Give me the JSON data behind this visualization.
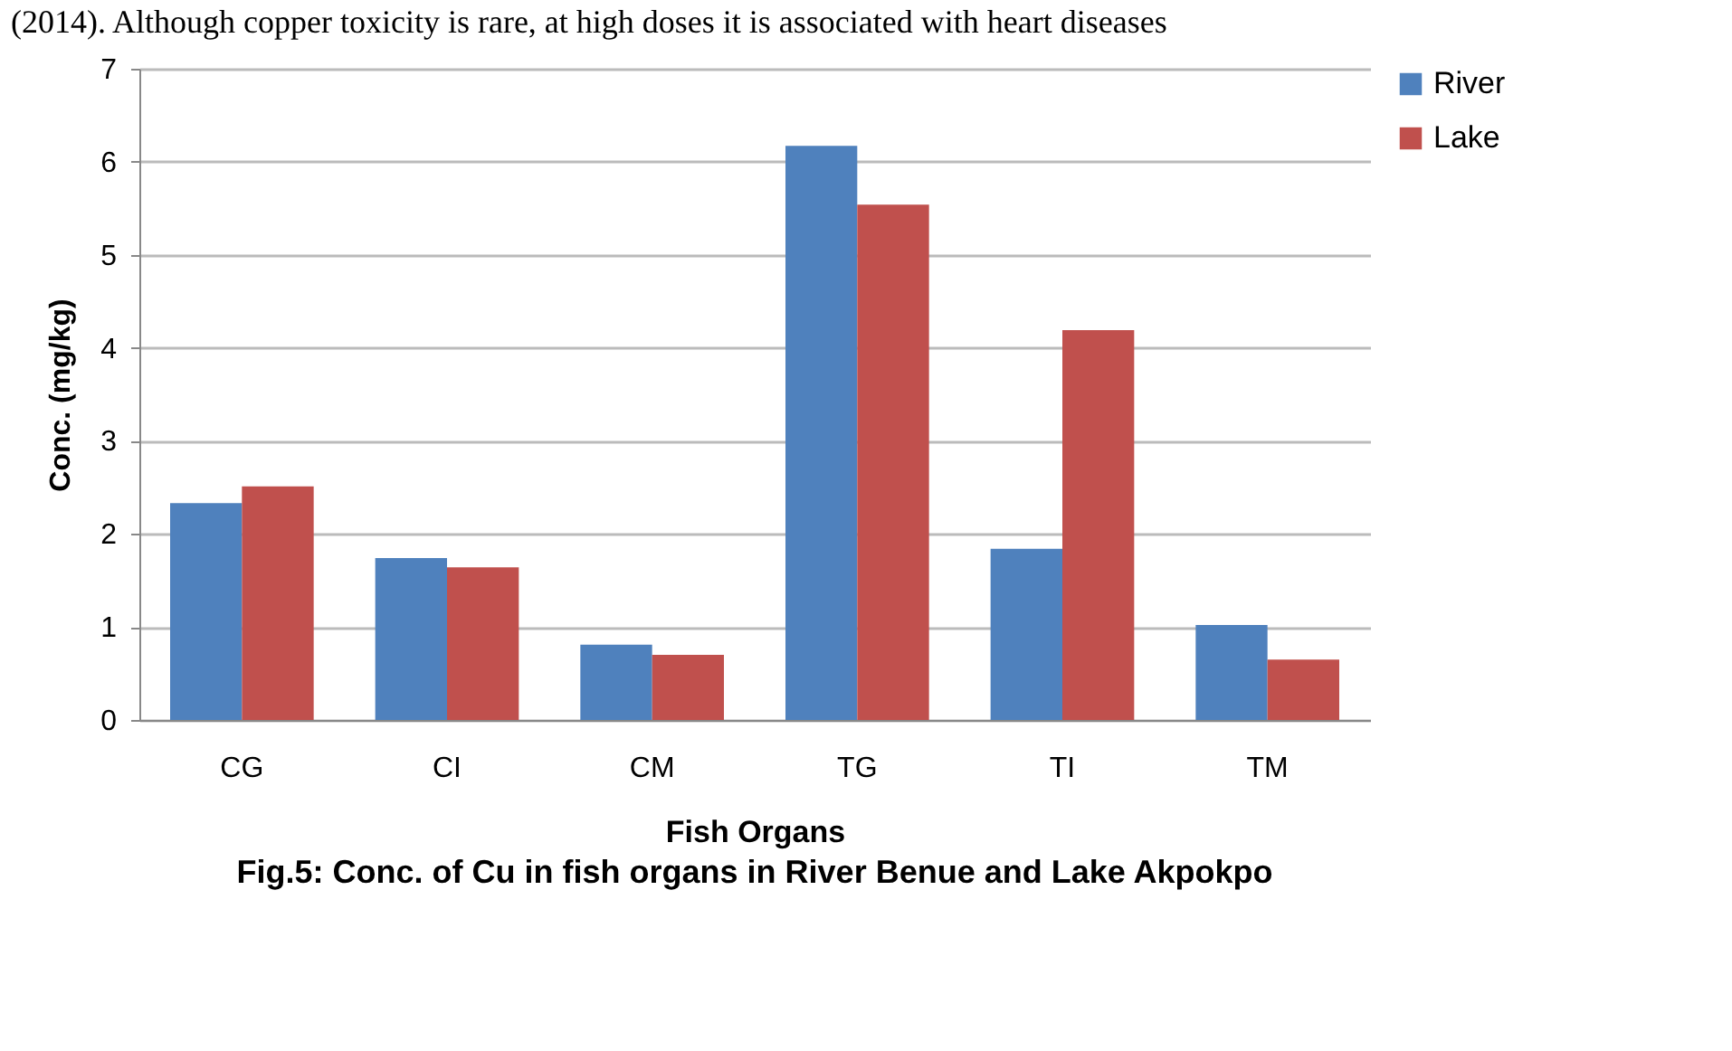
{
  "chart_data": {
    "type": "bar",
    "title": "Fig.5: Conc. of Cu in fish organs in River Benue and Lake Akpokpo",
    "xlabel": "Fish Organs",
    "ylabel": "Conc. (mg/kg)",
    "annotations": [
      "(2014). Although copper toxicity is rare, at high doses it is associated with heart diseases"
    ],
    "categories": [
      "CG",
      "CI",
      "CM",
      "TG",
      "TI",
      "TM"
    ],
    "series": [
      {
        "name": "River",
        "color": "#4f81bd",
        "values": [
          2.33,
          1.74,
          0.81,
          6.17,
          1.84,
          1.02
        ]
      },
      {
        "name": "Lake",
        "color": "#c0504d",
        "values": [
          2.51,
          1.64,
          0.7,
          5.54,
          4.19,
          0.65
        ]
      }
    ],
    "ylim": [
      0,
      7
    ],
    "yticks": [
      0,
      1,
      2,
      3,
      4,
      5,
      6,
      7
    ],
    "grid": "y",
    "legend": "right"
  }
}
